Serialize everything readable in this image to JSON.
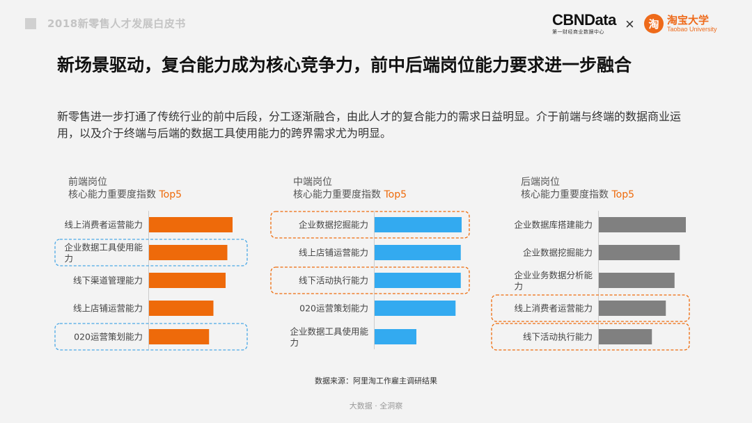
{
  "header": {
    "report_title": "2018新零售人才发展白皮书",
    "logo_cbn": "CBNData",
    "logo_cbn_sub": "第一财经商业数据中心",
    "logo_x": "×",
    "logo_taobao_icon": "淘",
    "logo_taobao": "淘宝大学",
    "logo_taobao_sub": "Taobao University"
  },
  "heading": "新场景驱动，复合能力成为核心竞争力，前中后端岗位能力要求进一步融合",
  "intro": "新零售进一步打通了传统行业的前中后段，分工逐渐融合，由此人才的复合能力的需求日益明显。介于前端与终端的数据商业运用，以及介于终端与后端的数据工具使用能力的跨界需求尤为明显。",
  "chart_data": [
    {
      "type": "bar",
      "orientation": "horizontal",
      "title_line1": "前端岗位",
      "title_line2": "核心能力重要度指数",
      "title_highlight": "Top5",
      "categories": [
        "线上消费者运营能力",
        "企业数据工具使用能力",
        "线下渠道管理能力",
        "线上店铺运营能力",
        "020运营策划能力"
      ],
      "values": [
        96,
        90,
        88,
        74,
        69
      ],
      "highlighted": [
        1,
        4
      ],
      "bar_color": "#ee6a0a",
      "box_color": "#4aa8e6"
    },
    {
      "type": "bar",
      "orientation": "horizontal",
      "title_line1": "中端岗位",
      "title_line2": "核心能力重要度指数",
      "title_highlight": "Top5",
      "categories": [
        "企业数据挖掘能力",
        "线上店铺运营能力",
        "线下活动执行能力",
        "020运营策划能力",
        "企业数据工具使用能力"
      ],
      "values": [
        100,
        99,
        99,
        93,
        48
      ],
      "highlighted": [
        0,
        2
      ],
      "bar_color": "#33aaf0",
      "box_color": "#ee6a0a"
    },
    {
      "type": "bar",
      "orientation": "horizontal",
      "title_line1": "后端岗位",
      "title_line2": "核心能力重要度指数",
      "title_highlight": "Top5",
      "categories": [
        "企业数据库搭建能力",
        "企业数据挖掘能力",
        "企业业务数据分析能力",
        "线上消费者运营能力",
        "线下活动执行能力"
      ],
      "values": [
        100,
        93,
        87,
        77,
        61
      ],
      "highlighted": [
        3,
        4
      ],
      "bar_color": "#808080",
      "box_color": "#ee6a0a"
    }
  ],
  "source": "数据来源：阿里淘工作雇主调研结果",
  "footer": "大数据 · 全洞察"
}
